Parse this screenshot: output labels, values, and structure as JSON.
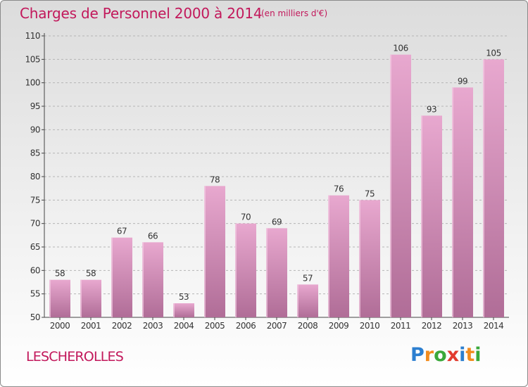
{
  "title": "Charges de Personnel 2000 à 2014",
  "subtitle": "(en milliers d'€)",
  "commune": "LESCHEROLLES",
  "brand": {
    "letters": [
      "P",
      "r",
      "o",
      "x",
      "i",
      "t",
      "i"
    ],
    "colors": [
      "#2c7fd0",
      "#f28c1e",
      "#3aa83a",
      "#e23b2e",
      "#2c7fd0",
      "#f28c1e",
      "#3aa83a"
    ]
  },
  "colors": {
    "bar_top": "#e8a8cf",
    "bar_bottom": "#b06d97",
    "accent": "#c2185b"
  },
  "chart_data": {
    "type": "bar",
    "categories": [
      "2000",
      "2001",
      "2002",
      "2003",
      "2004",
      "2005",
      "2006",
      "2007",
      "2008",
      "2009",
      "2010",
      "2011",
      "2012",
      "2013",
      "2014"
    ],
    "values": [
      58,
      58,
      67,
      66,
      53,
      78,
      70,
      69,
      57,
      76,
      75,
      106,
      93,
      99,
      105
    ],
    "ylim": [
      50,
      110
    ],
    "yticks": [
      50,
      55,
      60,
      65,
      70,
      75,
      80,
      85,
      90,
      95,
      100,
      105,
      110
    ],
    "grid": "y-dashed"
  }
}
